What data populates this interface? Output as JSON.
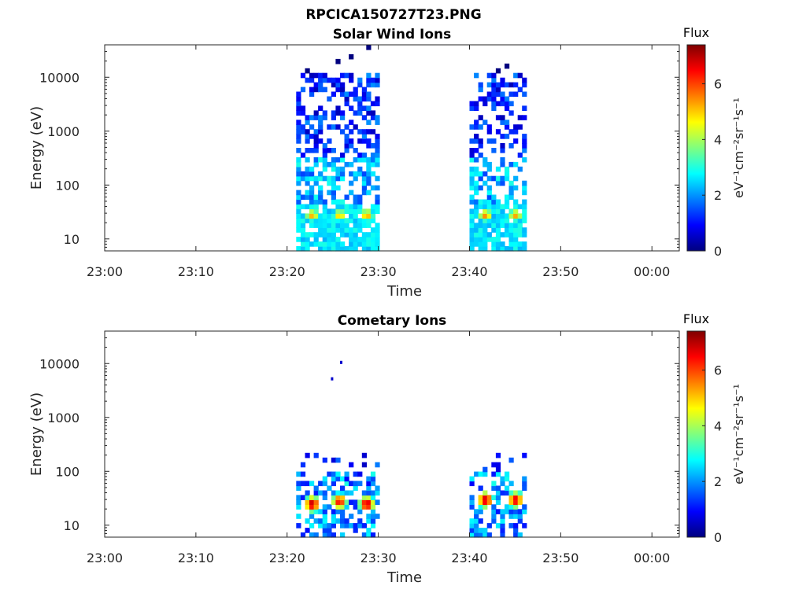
{
  "figure_title": "RPCICA150727T23.PNG",
  "colormap": {
    "name": "jet",
    "stops": [
      "#00007f",
      "#0000ff",
      "#007fff",
      "#00ffff",
      "#7fff7f",
      "#ffff00",
      "#ff7f00",
      "#ff0000",
      "#7f0000"
    ]
  },
  "chart_data": [
    {
      "type": "heatmap",
      "title": "Solar Wind Ions",
      "xlabel": "Time",
      "ylabel": "Energy (eV)",
      "x_ticks": [
        "23:00",
        "23:10",
        "23:20",
        "23:30",
        "23:40",
        "23:50",
        "00:00"
      ],
      "x_tick_minutes": [
        0,
        10,
        20,
        30,
        40,
        50,
        60
      ],
      "xlim_minutes": [
        0,
        63
      ],
      "y_scale": "log",
      "y_ticks": [
        "10",
        "100",
        "1000",
        "10000"
      ],
      "y_tick_values": [
        10,
        100,
        1000,
        10000
      ],
      "ylim": [
        6,
        40000
      ],
      "colorbar": {
        "title": "Flux",
        "unit": "eV⁻¹cm⁻²sr⁻¹s⁻¹",
        "ticks": [
          "0",
          "2",
          "4",
          "6"
        ],
        "tick_values": [
          0,
          2,
          4,
          6
        ],
        "range": [
          0,
          7.4
        ]
      },
      "active_intervals": [
        {
          "start": "23:21",
          "end": "23:30"
        },
        {
          "start": "23:40",
          "end": "23:46"
        }
      ],
      "flux_peaks": [
        {
          "time": "23:22.5",
          "energy_eV": 28,
          "flux": 5.2
        },
        {
          "time": "23:25.5",
          "energy_eV": 28,
          "flux": 5.0
        },
        {
          "time": "23:28.5",
          "energy_eV": 28,
          "flux": 5.3
        },
        {
          "time": "23:41.5",
          "energy_eV": 28,
          "flux": 5.5
        },
        {
          "time": "23:44.8",
          "energy_eV": 28,
          "flux": 5.3
        }
      ]
    },
    {
      "type": "heatmap",
      "title": "Cometary Ions",
      "xlabel": "Time",
      "ylabel": "Energy (eV)",
      "x_ticks": [
        "23:00",
        "23:10",
        "23:20",
        "23:30",
        "23:40",
        "23:50",
        "00:00"
      ],
      "x_tick_minutes": [
        0,
        10,
        20,
        30,
        40,
        50,
        60
      ],
      "xlim_minutes": [
        0,
        63
      ],
      "y_scale": "log",
      "y_ticks": [
        "10",
        "100",
        "1000",
        "10000"
      ],
      "y_tick_values": [
        10,
        100,
        1000,
        10000
      ],
      "ylim": [
        6,
        40000
      ],
      "colorbar": {
        "title": "Flux",
        "unit": "eV⁻¹cm⁻²sr⁻¹s⁻¹",
        "ticks": [
          "0",
          "2",
          "4",
          "6"
        ],
        "tick_values": [
          0,
          2,
          4,
          6
        ],
        "range": [
          0,
          7.4
        ]
      },
      "active_intervals": [
        {
          "start": "23:21",
          "end": "23:30"
        },
        {
          "start": "23:40",
          "end": "23:46"
        }
      ],
      "flux_peaks": [
        {
          "time": "23:22.5",
          "energy_eV": 25,
          "flux": 7.0
        },
        {
          "time": "23:25.5",
          "energy_eV": 28,
          "flux": 6.5
        },
        {
          "time": "23:28.5",
          "energy_eV": 25,
          "flux": 7.0
        },
        {
          "time": "23:41.5",
          "energy_eV": 30,
          "flux": 7.0
        },
        {
          "time": "23:44.8",
          "energy_eV": 30,
          "flux": 6.8
        }
      ],
      "isolated_points": [
        {
          "time": "23:24.8",
          "energy_eV": 5200
        },
        {
          "time": "23:25.8",
          "energy_eV": 10500
        }
      ]
    }
  ]
}
